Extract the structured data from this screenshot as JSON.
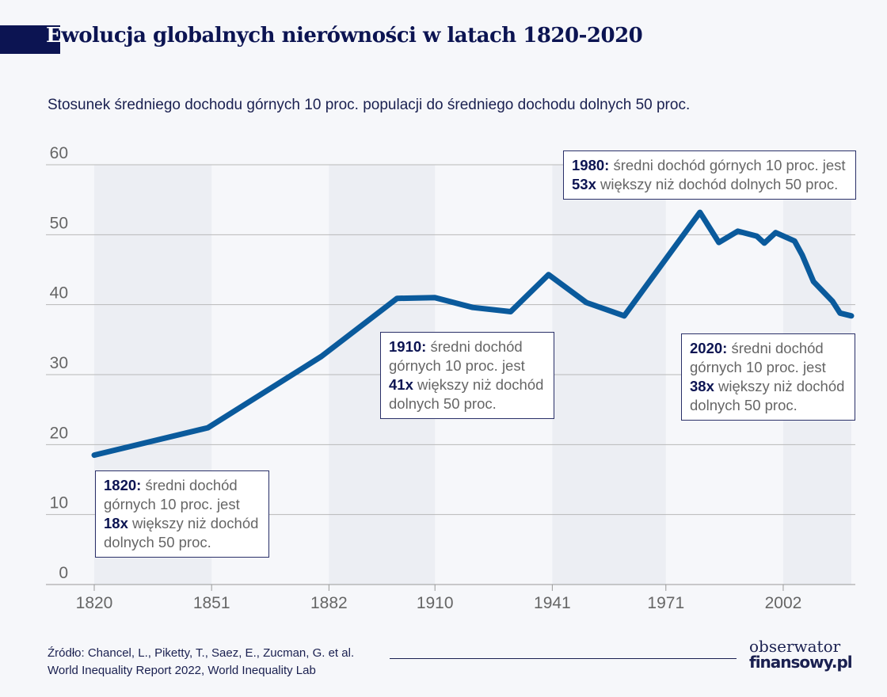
{
  "title": {
    "first_letter": "E",
    "rest": "wolucja globalnych nierówności w latach 1820-2020"
  },
  "subtitle": "Stosunek średniego dochodu górnych 10 proc. populacji do średniego dochodu dolnych 50 proc.",
  "chart_data": {
    "type": "line",
    "title": "Ewolucja globalnych nierówności w latach 1820-2020",
    "subtitle": "Stosunek średniego dochodu górnych 10 proc. populacji do średniego dochodu dolnych 50 proc.",
    "xlim": [
      1820,
      2020
    ],
    "ylim": [
      0,
      60
    ],
    "x_ticks": [
      1820,
      1851,
      1882,
      1910,
      1941,
      1971,
      2002
    ],
    "y_ticks": [
      0,
      10,
      20,
      30,
      40,
      50,
      60
    ],
    "grid": "horizontal",
    "shaded_bands": [
      [
        1820,
        1851
      ],
      [
        1882,
        1910
      ],
      [
        1941,
        1971
      ],
      [
        2002,
        2020
      ]
    ],
    "line_color": "#0a5a9c",
    "band_color": "#eceef3",
    "series": [
      {
        "x": [
          1820,
          1850,
          1880,
          1900,
          1910,
          1920,
          1930,
          1940,
          1950,
          1960,
          1980,
          1985,
          1990,
          1995,
          1997,
          2000,
          2005,
          2007,
          2010,
          2015,
          2017,
          2020
        ],
        "values": [
          18.5,
          22.4,
          32.6,
          40.9,
          41,
          39.6,
          39,
          44.3,
          40.3,
          38.4,
          53.2,
          48.9,
          50.5,
          49.8,
          48.8,
          50.3,
          49.1,
          47.1,
          43.3,
          40.5,
          38.8,
          38.4
        ]
      }
    ],
    "annotations": [
      {
        "year_label": "1820:",
        "text1": "średni dochód",
        "text2": "górnych 10 proc. jest",
        "mult": "18x",
        "text3": "większy niż dochód",
        "text4": "dolnych 50 proc."
      },
      {
        "year_label": "1910:",
        "text1": "średni dochód",
        "text2": "górnych 10 proc. jest",
        "mult": "41x",
        "text3": "większy niż dochód",
        "text4": "dolnych 50 proc."
      },
      {
        "year_label": "1980:",
        "text1": "średni dochód górnych 10 proc. jest",
        "mult": "53x",
        "text3": "większy niż dochód dolnych 50 proc."
      },
      {
        "year_label": "2020:",
        "text1": "średni dochód",
        "text2": "górnych 10 proc. jest",
        "mult": "38x",
        "text3": "większy niż dochód",
        "text4": "dolnych 50 proc."
      }
    ]
  },
  "source": {
    "line1": "Źródło: Chancel, L., Piketty, T., Saez, E., Zucman, G. et al.",
    "line2": "World Inequality Report 2022, World Inequality Lab"
  },
  "logo": {
    "line1": "obserwator",
    "line2": "finansowy.pl"
  }
}
